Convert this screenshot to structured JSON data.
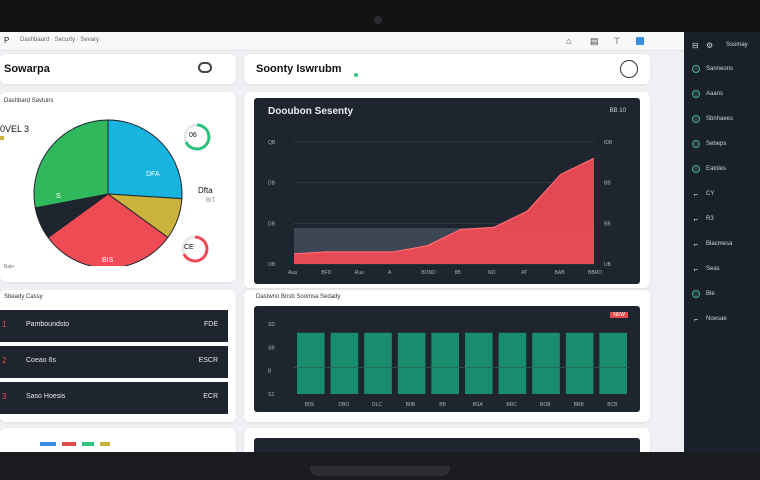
{
  "topbar": {
    "brand": "P",
    "breadcrumb": "Dashbaard · Securty · Sevary",
    "icons": [
      "bell-icon",
      "grid-icon",
      "filter-icon",
      "window-icon"
    ]
  },
  "header": {
    "left_title": "Sowarpa",
    "center_title": "Soonty Iswrubm",
    "left_icon": "toggle-icon",
    "right_icon": "search-icon"
  },
  "pie_card": {
    "subtitle": "Dashbard Savtuirs",
    "stat_label": "0VEL",
    "stat_label_sub": "3",
    "slice_labels": [
      "S",
      "DFA",
      "BIS"
    ],
    "side_label": "Dfta",
    "side_sub": "BIT",
    "ring_top": "06",
    "ring_bottom": "CE",
    "footer": "Bale",
    "slices": [
      {
        "name": "blue",
        "value": 26,
        "color": "#18b4e0"
      },
      {
        "name": "yellow",
        "value": 9,
        "color": "#c9b33c"
      },
      {
        "name": "red",
        "value": 30,
        "color": "#ef4b55"
      },
      {
        "name": "dark",
        "value": 7,
        "color": "#1f252e"
      },
      {
        "name": "green",
        "value": 28,
        "color": "#30b85d"
      }
    ]
  },
  "area_chart_title": "Dooubon Sesenty",
  "area_chart_header_right": "BB 10",
  "area_chart": {
    "type": "area",
    "y_ticks": [
      "QB",
      "DB",
      "DB",
      "OB"
    ],
    "right_ticks": [
      "IDB",
      "BB",
      "BB",
      "UB"
    ],
    "x_ticks": [
      "Aua",
      "BFD",
      "Ruu",
      "A",
      "BOND",
      "8B",
      "NO",
      "AT",
      "BAB",
      "BBRO"
    ],
    "values": [
      5,
      6,
      6,
      6,
      9,
      17,
      18,
      26,
      44,
      52
    ],
    "ylim": [
      0,
      60
    ]
  },
  "list_card": {
    "title": "Sbeady Cassy",
    "rows": [
      {
        "idx": "1",
        "name": "Pamboundsto",
        "value": "FDE"
      },
      {
        "idx": "2",
        "name": "Coeao 6s",
        "value": "ESCR"
      },
      {
        "idx": "3",
        "name": "Saso Hoesis",
        "value": "ECR"
      }
    ]
  },
  "bar_chart_title": "Dastwno Bnsb Soomsa Sedady",
  "bar_chart_badge": "NEW",
  "bar_chart": {
    "type": "bar",
    "y_ticks": [
      "SD",
      "SB",
      "B",
      "S2"
    ],
    "x_ticks": [
      "B0S",
      "DBO",
      "DLC",
      "B0B",
      "BB",
      "BSA",
      "BRC",
      "BOB",
      "BRB",
      "BCB"
    ],
    "values": [
      70,
      70,
      70,
      70,
      70,
      70,
      70,
      70,
      70,
      70
    ],
    "ylim": [
      0,
      80
    ]
  },
  "sidebar": {
    "title": "Ssomay",
    "items": [
      {
        "label": "Sanneons",
        "icon": "dot"
      },
      {
        "label": "Aaans",
        "icon": "dot"
      },
      {
        "label": "Sbnhaees",
        "icon": "dot"
      },
      {
        "label": "Sebeps",
        "icon": "dot"
      },
      {
        "label": "Eatoles",
        "icon": "dot"
      },
      {
        "label": "CY",
        "icon": "text"
      },
      {
        "label": "R3",
        "icon": "text"
      },
      {
        "label": "Blacmesa",
        "icon": "text"
      },
      {
        "label": "Seas",
        "icon": "text"
      },
      {
        "label": "Ble",
        "icon": "dot"
      },
      {
        "label": "Noesae",
        "icon": "text"
      }
    ]
  }
}
